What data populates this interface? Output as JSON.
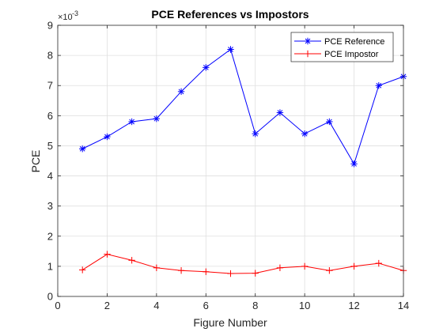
{
  "chart_data": {
    "type": "line",
    "title": "PCE References vs Impostors",
    "xlabel": "Figure Number",
    "ylabel": "PCE",
    "y_exponent_base": "×10",
    "y_exponent_power": "-3",
    "xlim": [
      0,
      14
    ],
    "ylim": [
      0,
      9
    ],
    "x_ticks": [
      "0",
      "2",
      "4",
      "6",
      "8",
      "10",
      "12",
      "14"
    ],
    "y_ticks": [
      "0",
      "1",
      "2",
      "3",
      "4",
      "5",
      "6",
      "7",
      "8",
      "9"
    ],
    "grid": true,
    "legend_position": "top-right",
    "x": [
      1,
      2,
      3,
      4,
      5,
      6,
      7,
      8,
      9,
      10,
      11,
      12,
      13,
      14
    ],
    "series": [
      {
        "name": "PCE Reference",
        "color": "#0000ff",
        "marker": "asterisk",
        "values": [
          4.9,
          5.3,
          5.8,
          5.9,
          6.8,
          7.6,
          8.2,
          5.4,
          6.1,
          5.4,
          5.8,
          4.4,
          7.0,
          7.3
        ]
      },
      {
        "name": "PCE Impostor",
        "color": "#ff0000",
        "marker": "plus",
        "values": [
          0.88,
          1.4,
          1.2,
          0.95,
          0.86,
          0.82,
          0.76,
          0.77,
          0.95,
          1.0,
          0.86,
          1.0,
          1.1,
          0.86
        ]
      }
    ]
  }
}
